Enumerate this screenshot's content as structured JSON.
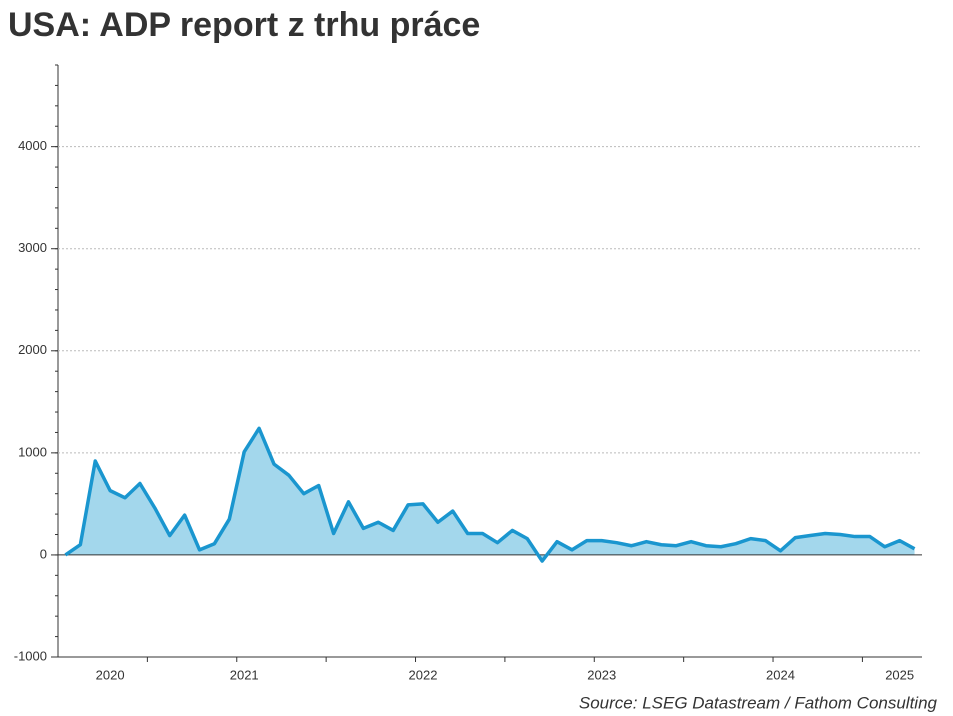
{
  "chart_data": {
    "type": "line",
    "title": "USA: ADP report z trhu práce",
    "source": "Source: LSEG Datastream / Fathom Consulting",
    "categories": [
      null,
      null,
      null,
      "2020",
      null,
      null,
      null,
      null,
      null,
      null,
      null,
      null,
      "2021",
      null,
      null,
      null,
      null,
      null,
      null,
      null,
      null,
      null,
      null,
      null,
      "2022",
      null,
      null,
      null,
      null,
      null,
      null,
      null,
      null,
      null,
      null,
      null,
      "2023",
      null,
      null,
      null,
      null,
      null,
      null,
      null,
      null,
      null,
      null,
      null,
      "2024",
      null,
      null,
      null,
      null,
      null,
      null,
      null,
      "2025",
      null
    ],
    "values": [
      0,
      100,
      920,
      630,
      560,
      700,
      460,
      190,
      390,
      50,
      110,
      350,
      1010,
      1240,
      890,
      780,
      600,
      680,
      210,
      520,
      260,
      320,
      240,
      490,
      500,
      320,
      430,
      210,
      210,
      120,
      240,
      160,
      -60,
      130,
      50,
      140,
      140,
      120,
      90,
      130,
      100,
      90,
      130,
      90,
      80,
      110,
      160,
      140,
      40,
      170,
      190,
      210,
      200,
      180,
      180,
      80,
      140,
      60
    ],
    "color": "#1a96cf",
    "area_color": "#a3d7ec",
    "area": true,
    "ylim": [
      -1000,
      4800
    ],
    "yticks": [
      -1000,
      0,
      1000,
      2000,
      3000,
      4000
    ],
    "grid": true
  }
}
